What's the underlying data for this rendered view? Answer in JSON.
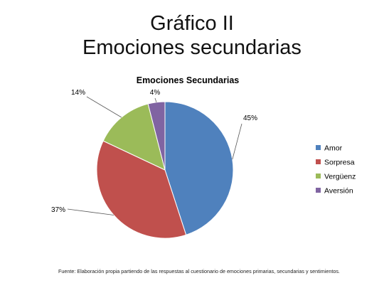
{
  "slide": {
    "title_line1": "Gráfico II",
    "title_line2": "Emociones secundarias",
    "source": "Fuente: Elaboración propia partiendo  de  las respuestas al cuestionario de emociones  primarias, secundarias y sentimientos."
  },
  "chart_data": {
    "type": "pie",
    "title": "Emociones Secundarias",
    "categories": [
      "Amor",
      "Sorpresa",
      "Vergüenz",
      "Aversión"
    ],
    "values": [
      45,
      37,
      14,
      4
    ],
    "labels": [
      "45%",
      "37%",
      "14%",
      "4%"
    ],
    "colors": [
      "#4f81bd",
      "#c0504d",
      "#9bbb59",
      "#8064a2"
    ],
    "legend_position": "right"
  }
}
